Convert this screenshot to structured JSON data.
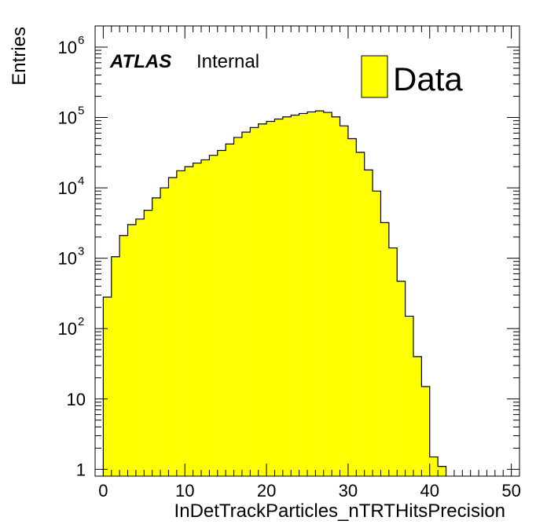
{
  "chart_data": {
    "type": "bar",
    "title": "",
    "xlabel": "InDetTrackParticles_nTRTHitsPrecision",
    "ylabel": "Entries",
    "xlim": [
      -1,
      51
    ],
    "ylim": [
      0.8,
      2000000
    ],
    "yscale": "log",
    "bin_width": 1,
    "bin_low_edges": [
      -1,
      0,
      1,
      2,
      3,
      4,
      5,
      6,
      7,
      8,
      9,
      10,
      11,
      12,
      13,
      14,
      15,
      16,
      17,
      18,
      19,
      20,
      21,
      22,
      23,
      24,
      25,
      26,
      27,
      28,
      29,
      30,
      31,
      32,
      33,
      34,
      35,
      36,
      37,
      38,
      39,
      40,
      41,
      42,
      43,
      44,
      45,
      46,
      47,
      48,
      49,
      50
    ],
    "values": [
      0,
      280,
      1050,
      2100,
      3000,
      3600,
      4800,
      7200,
      10000,
      14000,
      17500,
      20000,
      22500,
      25000,
      29000,
      34000,
      42000,
      52000,
      62000,
      72000,
      81000,
      88000,
      95000,
      102000,
      108000,
      114000,
      120000,
      124000,
      118000,
      102000,
      76000,
      50000,
      32000,
      18000,
      9000,
      3200,
      1400,
      470,
      150,
      40,
      15,
      1.5,
      1.1,
      0,
      0,
      0,
      0,
      0,
      0,
      0,
      0,
      0
    ],
    "x_ticks": [
      "0",
      "10",
      "20",
      "30",
      "40",
      "50"
    ],
    "y_ticks": [
      "1",
      "10",
      "10",
      "10",
      "10",
      "10",
      "10"
    ],
    "y_tick_exponents": [
      "",
      "",
      "2",
      "3",
      "4",
      "5",
      "6"
    ],
    "series": [
      {
        "name": "Data",
        "color": "#ffff00"
      }
    ],
    "legend_position": "top-right",
    "grid": false
  },
  "annotation": {
    "experiment": "ATLAS",
    "status": "Internal"
  },
  "colors": {
    "fill": "#ffff00",
    "edge": "#000000",
    "frame": "#000000"
  }
}
